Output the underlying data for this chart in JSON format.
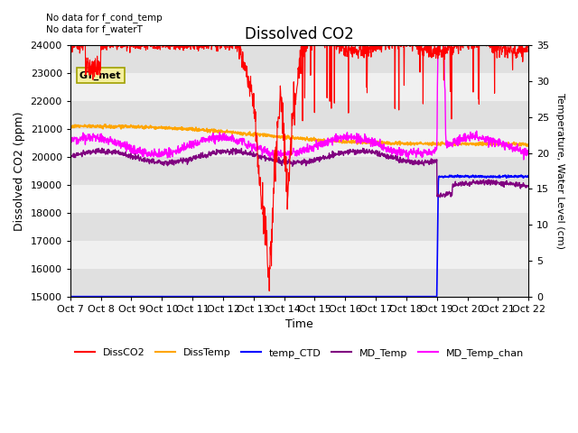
{
  "title": "Dissolved CO2",
  "xlabel": "Time",
  "ylabel_left": "Dissolved CO2 (ppm)",
  "ylabel_right": "Temperature, Water Level (cm)",
  "xlim": [
    0,
    15
  ],
  "ylim_left": [
    15000,
    24000
  ],
  "ylim_right": [
    0,
    35
  ],
  "xtick_labels": [
    "Oct 7",
    "Oct 8",
    "Oct 9",
    "Oct 10",
    "Oct 11",
    "Oct 12",
    "Oct 13",
    "Oct 14",
    "Oct 15",
    "Oct 16",
    "Oct 17",
    "Oct 18",
    "Oct 19",
    "Oct 20",
    "Oct 21",
    "Oct 22"
  ],
  "yticks_left": [
    15000,
    16000,
    17000,
    18000,
    19000,
    20000,
    21000,
    22000,
    23000,
    24000
  ],
  "yticks_right": [
    0,
    5,
    10,
    15,
    20,
    25,
    30,
    35
  ],
  "annotation_top_left": "No data for f_cond_temp\nNo data for f_waterT",
  "annotation_box": "GT_met",
  "background_color": "#ffffff",
  "colors": {
    "DissCO2": "#ff0000",
    "DissTemp": "#ffa500",
    "temp_CTD": "#0000ff",
    "MD_Temp": "#800080",
    "MD_Temp_chan": "#ff00ff"
  },
  "legend_labels": [
    "DissCO2",
    "DissTemp",
    "temp_CTD",
    "MD_Temp",
    "MD_Temp_chan"
  ]
}
